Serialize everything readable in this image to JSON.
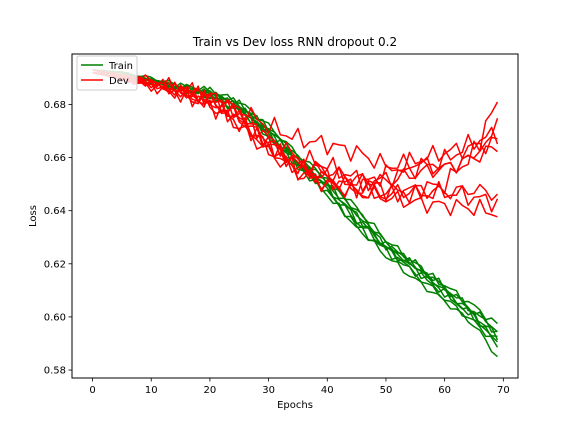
{
  "chart_data": {
    "type": "line",
    "title": "Train vs Dev loss RNN dropout 0.2",
    "xlabel": "Epochs",
    "ylabel": "Loss",
    "xlim": [
      -3.5,
      72.5
    ],
    "ylim": [
      0.577,
      0.699
    ],
    "xticks": [
      0,
      10,
      20,
      30,
      40,
      50,
      60,
      70
    ],
    "yticks": [
      0.58,
      0.6,
      0.62,
      0.64,
      0.66,
      0.68
    ],
    "ytick_labels": [
      "0.58",
      "0.60",
      "0.62",
      "0.64",
      "0.66",
      "0.68"
    ],
    "grid": false,
    "legend": {
      "location": "upper-left",
      "entries": [
        {
          "label": "Train",
          "color": "#008000"
        },
        {
          "label": "Dev",
          "color": "#ff0000"
        }
      ]
    },
    "colors": {
      "train": "#008000",
      "dev": "#ff0000"
    },
    "series_keypoints_x": [
      0,
      5,
      10,
      15,
      20,
      25,
      30,
      35,
      40,
      45,
      50,
      55,
      60,
      65,
      69
    ],
    "series": [
      {
        "group": "Train",
        "keypoints": [
          0.693,
          0.692,
          0.689,
          0.686,
          0.684,
          0.679,
          0.67,
          0.658,
          0.65,
          0.638,
          0.627,
          0.62,
          0.611,
          0.602,
          0.594
        ]
      },
      {
        "group": "Train",
        "keypoints": [
          0.693,
          0.692,
          0.689,
          0.686,
          0.683,
          0.678,
          0.668,
          0.657,
          0.648,
          0.636,
          0.626,
          0.618,
          0.609,
          0.6,
          0.591
        ]
      },
      {
        "group": "Train",
        "keypoints": [
          0.693,
          0.692,
          0.689,
          0.687,
          0.685,
          0.68,
          0.671,
          0.66,
          0.651,
          0.64,
          0.628,
          0.619,
          0.61,
          0.601,
          0.589
        ]
      },
      {
        "group": "Train",
        "keypoints": [
          0.692,
          0.691,
          0.688,
          0.686,
          0.684,
          0.679,
          0.669,
          0.657,
          0.647,
          0.634,
          0.623,
          0.614,
          0.606,
          0.597,
          0.585
        ]
      },
      {
        "group": "Train",
        "keypoints": [
          0.693,
          0.692,
          0.689,
          0.686,
          0.683,
          0.678,
          0.669,
          0.659,
          0.649,
          0.637,
          0.627,
          0.619,
          0.612,
          0.604,
          0.597
        ]
      },
      {
        "group": "Train",
        "keypoints": [
          0.693,
          0.692,
          0.69,
          0.687,
          0.684,
          0.679,
          0.668,
          0.657,
          0.646,
          0.634,
          0.625,
          0.617,
          0.609,
          0.6,
          0.593
        ]
      },
      {
        "group": "Train",
        "keypoints": [
          0.693,
          0.692,
          0.689,
          0.687,
          0.685,
          0.681,
          0.672,
          0.661,
          0.652,
          0.641,
          0.629,
          0.62,
          0.611,
          0.602,
          0.595
        ]
      },
      {
        "group": "Train",
        "keypoints": [
          0.692,
          0.691,
          0.688,
          0.686,
          0.684,
          0.68,
          0.671,
          0.66,
          0.65,
          0.639,
          0.626,
          0.616,
          0.607,
          0.598,
          0.59
        ]
      },
      {
        "group": "Dev",
        "keypoints": [
          0.693,
          0.691,
          0.689,
          0.686,
          0.683,
          0.678,
          0.672,
          0.667,
          0.665,
          0.662,
          0.657,
          0.658,
          0.656,
          0.66,
          0.664
        ]
      },
      {
        "group": "Dev",
        "keypoints": [
          0.692,
          0.69,
          0.688,
          0.685,
          0.681,
          0.677,
          0.667,
          0.66,
          0.657,
          0.652,
          0.648,
          0.646,
          0.647,
          0.645,
          0.643
        ]
      },
      {
        "group": "Dev",
        "keypoints": [
          0.692,
          0.69,
          0.688,
          0.685,
          0.682,
          0.675,
          0.663,
          0.656,
          0.652,
          0.648,
          0.646,
          0.648,
          0.65,
          0.662,
          0.671
        ]
      },
      {
        "group": "Dev",
        "keypoints": [
          0.692,
          0.69,
          0.687,
          0.684,
          0.681,
          0.676,
          0.666,
          0.658,
          0.655,
          0.652,
          0.651,
          0.654,
          0.656,
          0.66,
          0.682
        ]
      },
      {
        "group": "Dev",
        "keypoints": [
          0.692,
          0.69,
          0.688,
          0.685,
          0.68,
          0.673,
          0.664,
          0.655,
          0.65,
          0.647,
          0.646,
          0.648,
          0.647,
          0.648,
          0.646
        ]
      },
      {
        "group": "Dev",
        "keypoints": [
          0.693,
          0.691,
          0.688,
          0.685,
          0.682,
          0.674,
          0.665,
          0.656,
          0.652,
          0.649,
          0.654,
          0.659,
          0.662,
          0.664,
          0.666
        ]
      },
      {
        "group": "Dev",
        "keypoints": [
          0.692,
          0.69,
          0.688,
          0.685,
          0.681,
          0.675,
          0.665,
          0.657,
          0.654,
          0.65,
          0.652,
          0.656,
          0.659,
          0.666,
          0.669
        ]
      },
      {
        "group": "Dev",
        "keypoints": [
          0.692,
          0.69,
          0.687,
          0.684,
          0.68,
          0.672,
          0.662,
          0.654,
          0.65,
          0.647,
          0.645,
          0.643,
          0.642,
          0.641,
          0.639
        ]
      }
    ]
  }
}
